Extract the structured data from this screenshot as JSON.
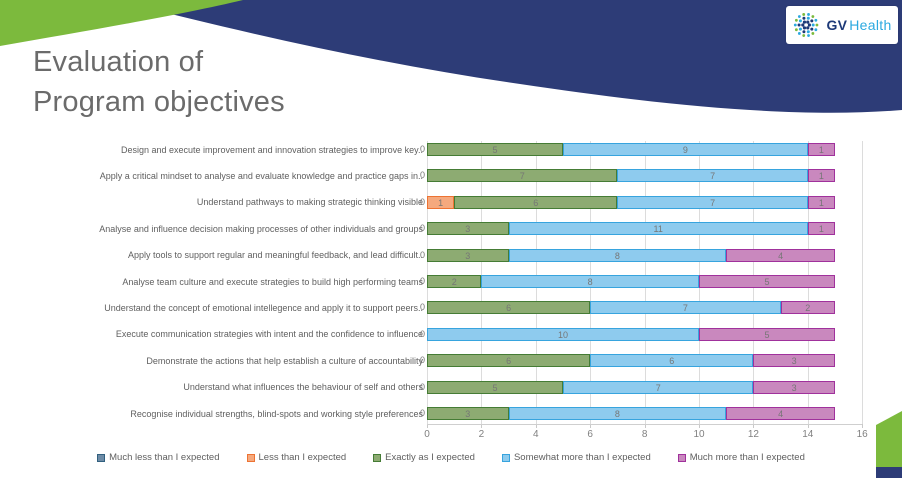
{
  "slide": {
    "title_line1": "Evaluation of",
    "title_line2": "Program objectives"
  },
  "logo": {
    "gv": "GV",
    "health": "Health"
  },
  "colors": {
    "header_navy": "#2d3c77",
    "header_green": "#7cba3d",
    "title_gray": "#6b6b6b"
  },
  "chart_data": {
    "type": "bar",
    "orientation": "horizontal-stacked",
    "title": "",
    "xlabel": "",
    "ylabel": "",
    "xlim": [
      0,
      16
    ],
    "xticks": [
      0,
      2,
      4,
      6,
      8,
      10,
      12,
      14,
      16
    ],
    "grid": true,
    "legend_position": "bottom",
    "categories": [
      "Design and execute improvement and innovation strategies to improve key..",
      "Apply a critical mindset to analyse and evaluate knowledge and practice gaps in..",
      "Understand pathways to making strategic thinking visible",
      "Analyse and influence decision making processes of other individuals and groups",
      "Apply tools to support regular and meaningful feedback, and lead difficult..",
      "Analyse team culture and execute strategies to build high performing teams",
      "Understand the concept of emotional intellegence and apply it to support peers..",
      "Execute communication strategies with intent and the confidence to influence",
      "Demonstrate the actions that help establish a culture of accountability",
      "Understand what influences the behaviour of self and others",
      "Recognise individual strengths, blind-spots and working style preferences"
    ],
    "series": [
      {
        "name": "Much less than I expected",
        "fill": "#6d8ba6",
        "border": "#31607f",
        "values": [
          0,
          0,
          0,
          0,
          0,
          0,
          0,
          0,
          0,
          0,
          0
        ]
      },
      {
        "name": "Less than I expected",
        "fill": "#f5a97e",
        "border": "#ed7333",
        "values": [
          0,
          0,
          1,
          0,
          0,
          0,
          0,
          0,
          0,
          0,
          0
        ]
      },
      {
        "name": "Exactly as I expected",
        "fill": "#8dab72",
        "border": "#457c35",
        "values": [
          5,
          7,
          6,
          3,
          3,
          2,
          6,
          0,
          6,
          5,
          3
        ]
      },
      {
        "name": "Somewhat more than I expected",
        "fill": "#8ecbee",
        "border": "#37a4de",
        "values": [
          9,
          7,
          7,
          11,
          8,
          8,
          7,
          10,
          6,
          7,
          8
        ]
      },
      {
        "name": "Much more than I expected",
        "fill": "#c988be",
        "border": "#a0319c",
        "values": [
          1,
          1,
          1,
          1,
          4,
          5,
          2,
          5,
          3,
          3,
          4
        ]
      }
    ]
  }
}
